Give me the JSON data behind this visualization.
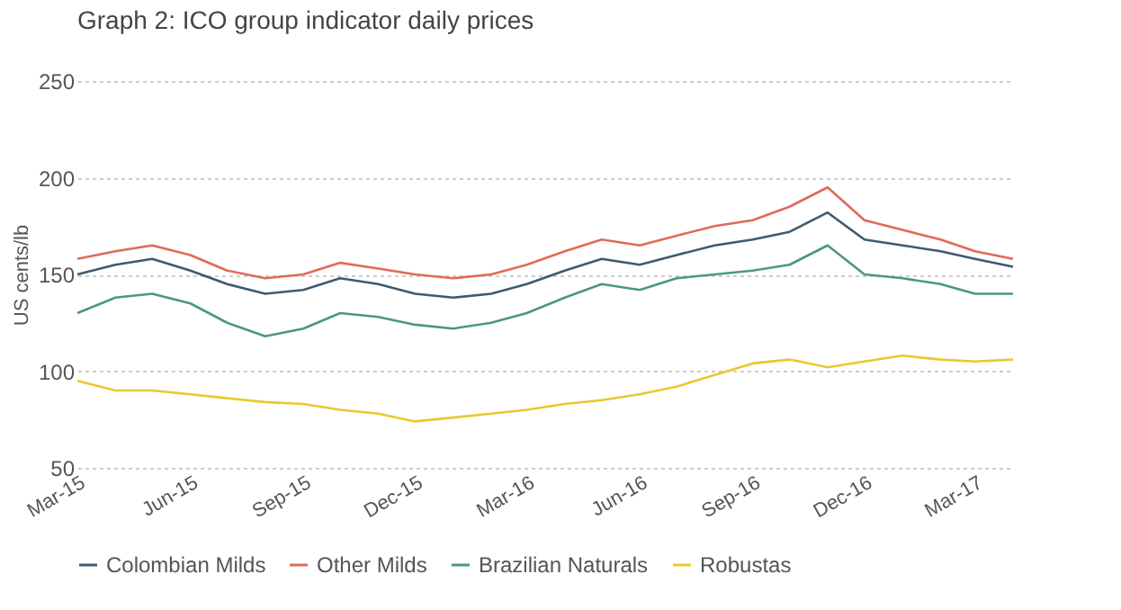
{
  "chart_data": {
    "type": "line",
    "title": "Graph 2: ICO group indicator daily prices",
    "ylabel": "US cents/lb",
    "x": [
      "2015-03",
      "2015-04",
      "2015-05",
      "2015-06",
      "2015-07",
      "2015-08",
      "2015-09",
      "2015-10",
      "2015-11",
      "2015-12",
      "2016-01",
      "2016-02",
      "2016-03",
      "2016-04",
      "2016-05",
      "2016-06",
      "2016-07",
      "2016-08",
      "2016-09",
      "2016-10",
      "2016-11",
      "2016-12",
      "2017-01",
      "2017-02",
      "2017-03",
      "2017-04"
    ],
    "series": [
      {
        "name": "Colombian Milds",
        "color": "#3e5b6e",
        "values": [
          150,
          155,
          158,
          152,
          145,
          140,
          142,
          148,
          145,
          140,
          138,
          140,
          145,
          152,
          158,
          155,
          160,
          165,
          168,
          172,
          182,
          168,
          165,
          162,
          158,
          154
        ]
      },
      {
        "name": "Other Milds",
        "color": "#e06a5a",
        "values": [
          158,
          162,
          165,
          160,
          152,
          148,
          150,
          156,
          153,
          150,
          148,
          150,
          155,
          162,
          168,
          165,
          170,
          175,
          178,
          185,
          195,
          178,
          173,
          168,
          162,
          158
        ]
      },
      {
        "name": "Brazilian Naturals",
        "color": "#4a9a78",
        "values": [
          130,
          138,
          140,
          135,
          125,
          118,
          122,
          130,
          128,
          124,
          122,
          125,
          130,
          138,
          145,
          142,
          148,
          150,
          152,
          155,
          165,
          150,
          148,
          145,
          140,
          140
        ]
      },
      {
        "name": "Robustas",
        "color": "#e8c830",
        "values": [
          95,
          90,
          90,
          88,
          86,
          84,
          83,
          80,
          78,
          74,
          76,
          78,
          80,
          83,
          85,
          88,
          92,
          98,
          104,
          106,
          102,
          105,
          108,
          106,
          105,
          106
        ]
      }
    ],
    "xlim": [
      "2015-03",
      "2017-04"
    ],
    "xticks": [
      {
        "value": "2015-03",
        "label": "Mar-15"
      },
      {
        "value": "2015-06",
        "label": "Jun-15"
      },
      {
        "value": "2015-09",
        "label": "Sep-15"
      },
      {
        "value": "2015-12",
        "label": "Dec-15"
      },
      {
        "value": "2016-03",
        "label": "Mar-16"
      },
      {
        "value": "2016-06",
        "label": "Jun-16"
      },
      {
        "value": "2016-09",
        "label": "Sep-16"
      },
      {
        "value": "2016-12",
        "label": "Dec-16"
      },
      {
        "value": "2017-03",
        "label": "Mar-17"
      }
    ],
    "ylim": [
      50,
      250
    ],
    "yticks": [
      50,
      100,
      150,
      200,
      250
    ],
    "grid": "y",
    "legend": "bottom",
    "marker": "none",
    "line_style": "solid"
  }
}
